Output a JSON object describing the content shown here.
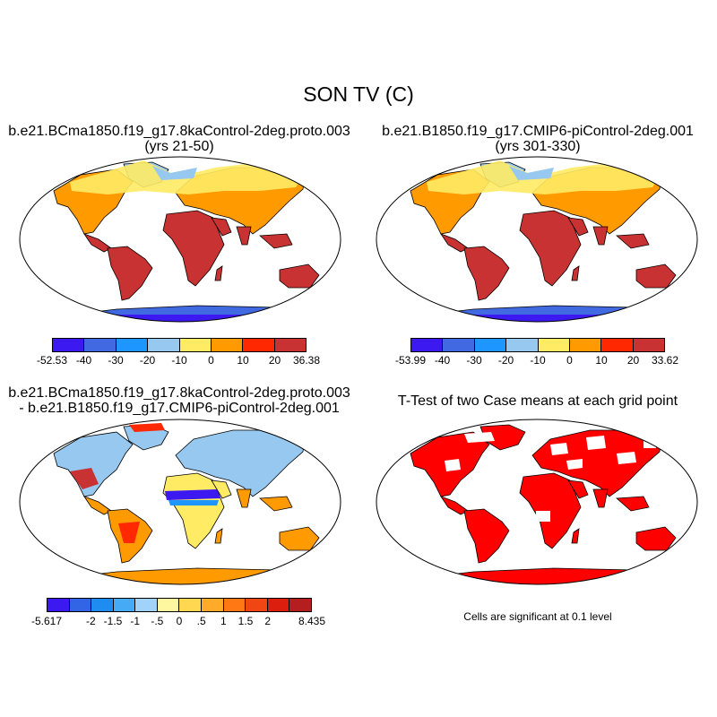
{
  "title": "SON TV (C)",
  "panels": [
    {
      "title_line1": "b.e21.BCma1850.f19_g17.8kaControl-2deg.proto.003",
      "title_line2": "(yrs 21-50)"
    },
    {
      "title_line1": "b.e21.B1850.f19_g17.CMIP6-piControl-2deg.001",
      "title_line2": "(yrs 301-330)"
    },
    {
      "title_line1": "b.e21.BCma1850.f19_g17.8kaControl-2deg.proto.003",
      "title_line2": "- b.e21.B1850.f19_g17.CMIP6-piControl-2deg.001"
    },
    {
      "title_line1": "T-Test of two Case means at each grid point",
      "note": "Cells are significant at 0.1 level"
    }
  ],
  "colorbars": [
    {
      "colors": [
        "#3c19f0",
        "#4169e1",
        "#1e96ff",
        "#96c8f0",
        "#ffeb64",
        "#ff9b00",
        "#ff2800",
        "#c83232"
      ],
      "labels": [
        "-52.53",
        "-40",
        "-30",
        "-20",
        "-10",
        "0",
        "10",
        "20",
        "36.38"
      ]
    },
    {
      "colors": [
        "#3c19f0",
        "#4169e1",
        "#1e96ff",
        "#96c8f0",
        "#ffeb64",
        "#ff9b00",
        "#ff2800",
        "#c83232"
      ],
      "labels": [
        "-53.99",
        "-40",
        "-30",
        "-20",
        "-10",
        "0",
        "10",
        "20",
        "33.62"
      ]
    },
    {
      "colors": [
        "#3c19f0",
        "#3264e6",
        "#1e8cf0",
        "#46aaf5",
        "#a0d2fa",
        "#fff6a0",
        "#ffd750",
        "#ffaa28",
        "#ff7814",
        "#f04614",
        "#dc1e0f",
        "#b41e1e"
      ],
      "labels": [
        "-5.617",
        "",
        "-2",
        "-1.5",
        "-1",
        "-.5",
        "0",
        ".5",
        "1",
        "1.5",
        "2",
        "",
        "8.435"
      ]
    }
  ],
  "colors": {
    "hot": "#c83232",
    "warm": "#ff2800",
    "orange": "#ff9b00",
    "yellow": "#ffeb64",
    "lightblue": "#96c8f0",
    "blue": "#1e96ff",
    "deepblue": "#4169e1",
    "violet": "#3c19f0",
    "significant": "#ff0000"
  }
}
